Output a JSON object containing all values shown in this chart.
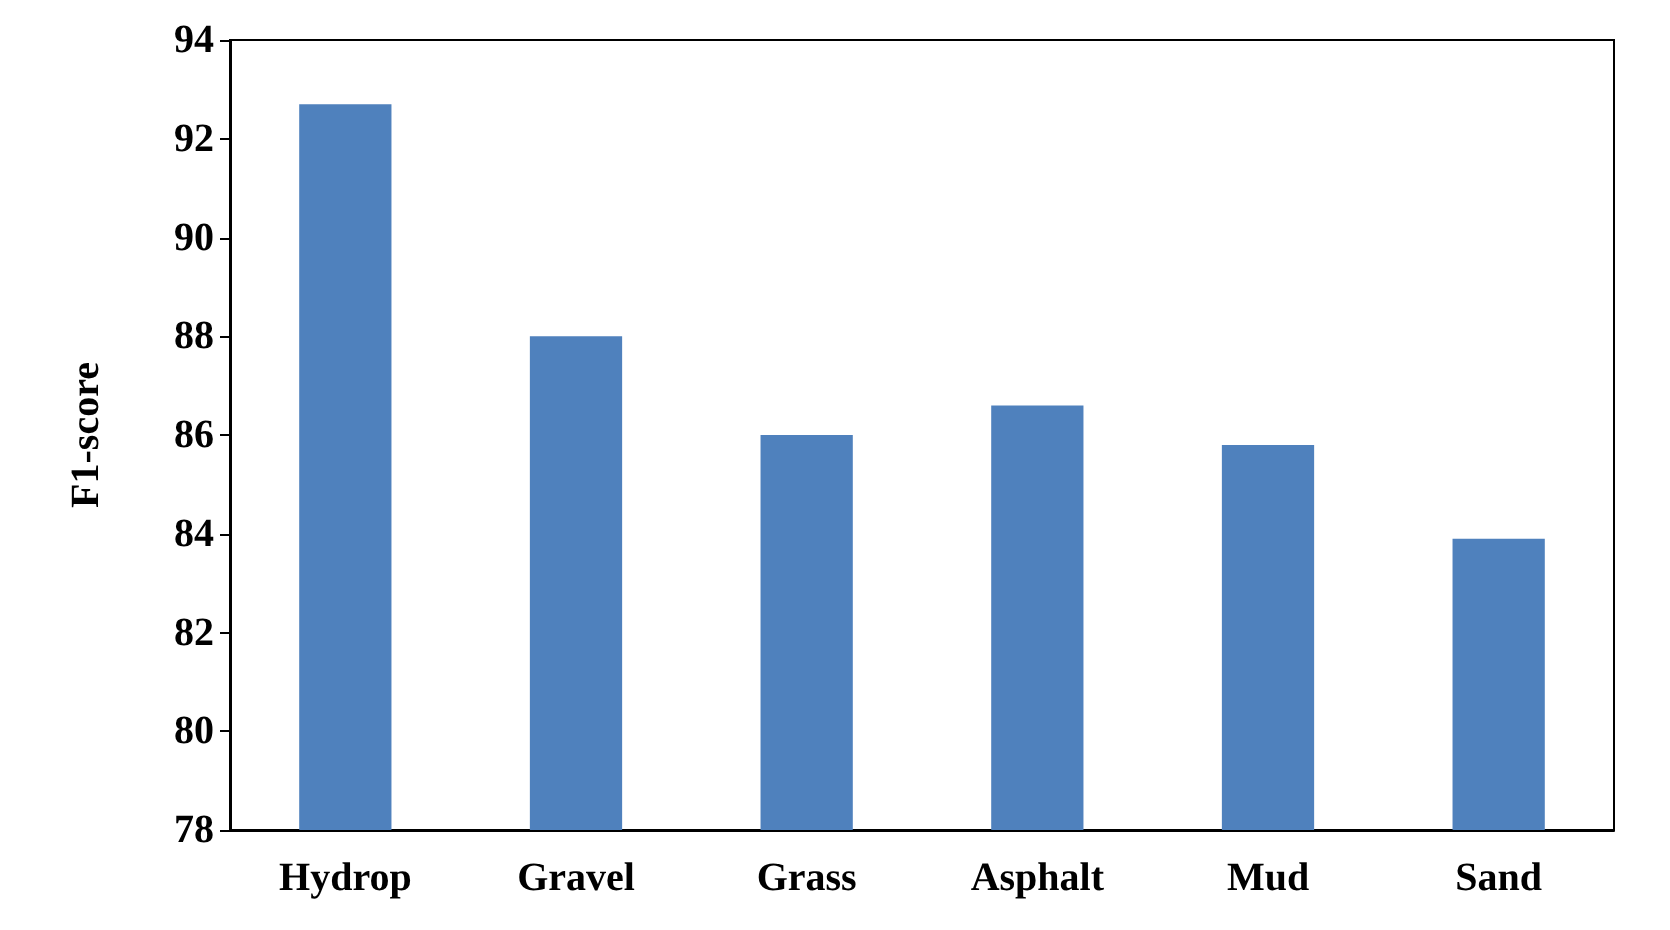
{
  "chart_data": {
    "type": "bar",
    "ylabel": "F1-score",
    "categories": [
      "Hydrop",
      "Gravel",
      "Grass",
      "Asphalt",
      "Mud",
      "Sand"
    ],
    "values": [
      92.7,
      88.0,
      86.0,
      86.6,
      85.8,
      83.9
    ],
    "color": "#4f81bd",
    "ylim": [
      78,
      94
    ],
    "yticks": [
      78,
      80,
      82,
      84,
      86,
      88,
      90,
      92,
      94
    ],
    "grid": false
  }
}
